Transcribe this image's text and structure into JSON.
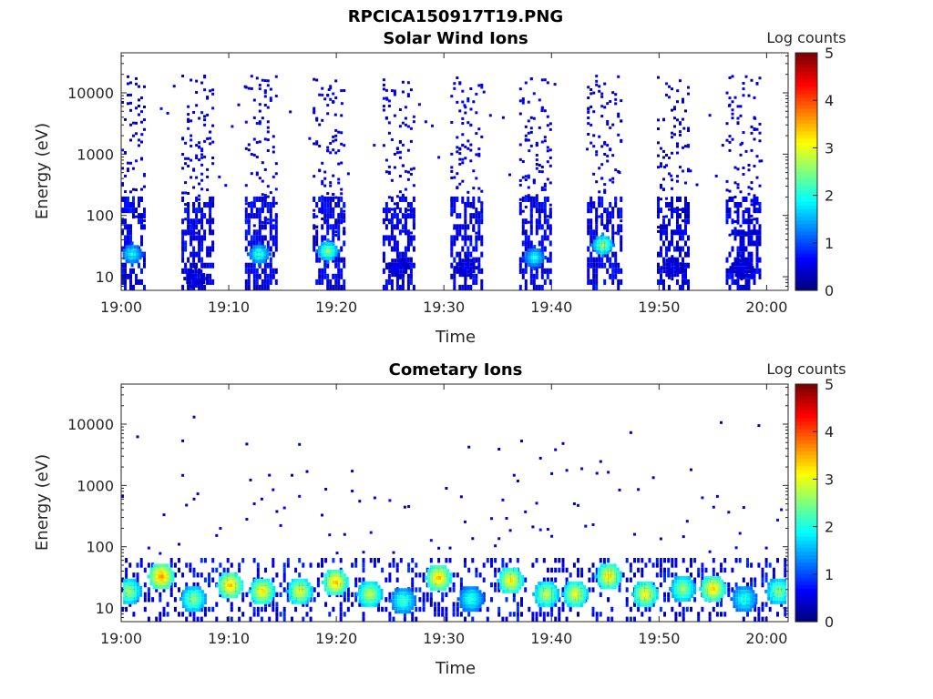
{
  "figure_title": "RPCICA150917T19.PNG",
  "chart_data": [
    {
      "type": "heatmap",
      "title": "Solar Wind Ions",
      "xlabel": "Time",
      "ylabel": "Energy (eV)",
      "x_ticks": [
        "19:00",
        "19:10",
        "19:20",
        "19:30",
        "19:40",
        "19:50",
        "20:00"
      ],
      "x_range": [
        "19:00",
        "20:02"
      ],
      "y_scale": "log",
      "y_ticks": [
        10,
        100,
        1000,
        10000
      ],
      "y_tick_labels": [
        "10",
        "100",
        "1000",
        "10000"
      ],
      "ylim": [
        6,
        45000
      ],
      "colorbar": {
        "label": "Log counts",
        "range": [
          0,
          5
        ],
        "ticks": [
          "0",
          "1",
          "2",
          "3",
          "4",
          "5"
        ],
        "colormap": "jet"
      },
      "sweeps": [
        {
          "start_min": 0.0,
          "end_min": 2.2,
          "peaks": [
            {
              "energy_eV": 25,
              "log_counts": 2.1
            }
          ]
        },
        {
          "start_min": 5.6,
          "end_min": 8.4,
          "peaks": [
            {
              "energy_eV": 10,
              "log_counts": 0.6
            }
          ]
        },
        {
          "start_min": 11.5,
          "end_min": 14.3,
          "peaks": [
            {
              "energy_eV": 25,
              "log_counts": 2.3
            }
          ]
        },
        {
          "start_min": 17.8,
          "end_min": 20.8,
          "peaks": [
            {
              "energy_eV": 28,
              "log_counts": 2.7
            }
          ]
        },
        {
          "start_min": 24.3,
          "end_min": 27.3,
          "peaks": [
            {
              "energy_eV": 15,
              "log_counts": 0.6
            }
          ]
        },
        {
          "start_min": 30.6,
          "end_min": 33.6,
          "peaks": [
            {
              "energy_eV": 15,
              "log_counts": 0.6
            }
          ]
        },
        {
          "start_min": 37.0,
          "end_min": 40.0,
          "peaks": [
            {
              "energy_eV": 22,
              "log_counts": 2.1
            }
          ]
        },
        {
          "start_min": 43.3,
          "end_min": 46.4,
          "peaks": [
            {
              "energy_eV": 35,
              "log_counts": 2.8
            }
          ]
        },
        {
          "start_min": 49.8,
          "end_min": 52.8,
          "peaks": [
            {
              "energy_eV": 15,
              "log_counts": 0.6
            }
          ]
        },
        {
          "start_min": 56.2,
          "end_min": 59.3,
          "peaks": [
            {
              "energy_eV": 15,
              "log_counts": 0.6
            }
          ]
        }
      ]
    },
    {
      "type": "heatmap",
      "title": "Cometary Ions",
      "xlabel": "Time",
      "ylabel": "Energy (eV)",
      "x_ticks": [
        "19:00",
        "19:10",
        "19:20",
        "19:30",
        "19:40",
        "19:50",
        "20:00"
      ],
      "x_range": [
        "19:00",
        "20:02"
      ],
      "y_scale": "log",
      "y_ticks": [
        10,
        100,
        1000,
        10000
      ],
      "y_tick_labels": [
        "10",
        "100",
        "1000",
        "10000"
      ],
      "ylim": [
        6,
        45000
      ],
      "colorbar": {
        "label": "Log counts",
        "range": [
          0,
          5
        ],
        "ticks": [
          "0",
          "1",
          "2",
          "3",
          "4",
          "5"
        ],
        "colormap": "jet"
      },
      "blobs": [
        {
          "time_min": 0.6,
          "energy_eV": 20,
          "log_counts": 2.8
        },
        {
          "time_min": 3.6,
          "energy_eV": 35,
          "log_counts": 3.8
        },
        {
          "time_min": 6.6,
          "energy_eV": 15,
          "log_counts": 2.7
        },
        {
          "time_min": 10.0,
          "energy_eV": 25,
          "log_counts": 3.6
        },
        {
          "time_min": 13.0,
          "energy_eV": 20,
          "log_counts": 3.4
        },
        {
          "time_min": 16.5,
          "energy_eV": 20,
          "log_counts": 3.2
        },
        {
          "time_min": 19.8,
          "energy_eV": 28,
          "log_counts": 3.6
        },
        {
          "time_min": 23.0,
          "energy_eV": 18,
          "log_counts": 3.0
        },
        {
          "time_min": 26.1,
          "energy_eV": 14,
          "log_counts": 2.3
        },
        {
          "time_min": 29.4,
          "energy_eV": 33,
          "log_counts": 3.6
        },
        {
          "time_min": 32.4,
          "energy_eV": 15,
          "log_counts": 2.2
        },
        {
          "time_min": 36.1,
          "energy_eV": 30,
          "log_counts": 3.4
        },
        {
          "time_min": 39.4,
          "energy_eV": 18,
          "log_counts": 3.0
        },
        {
          "time_min": 42.1,
          "energy_eV": 18,
          "log_counts": 3.2
        },
        {
          "time_min": 45.2,
          "energy_eV": 35,
          "log_counts": 3.4
        },
        {
          "time_min": 48.6,
          "energy_eV": 18,
          "log_counts": 3.3
        },
        {
          "time_min": 52.1,
          "energy_eV": 22,
          "log_counts": 2.8
        },
        {
          "time_min": 54.9,
          "energy_eV": 22,
          "log_counts": 3.5
        },
        {
          "time_min": 57.8,
          "energy_eV": 15,
          "log_counts": 2.2
        },
        {
          "time_min": 61.0,
          "energy_eV": 20,
          "log_counts": 2.7
        }
      ]
    }
  ]
}
